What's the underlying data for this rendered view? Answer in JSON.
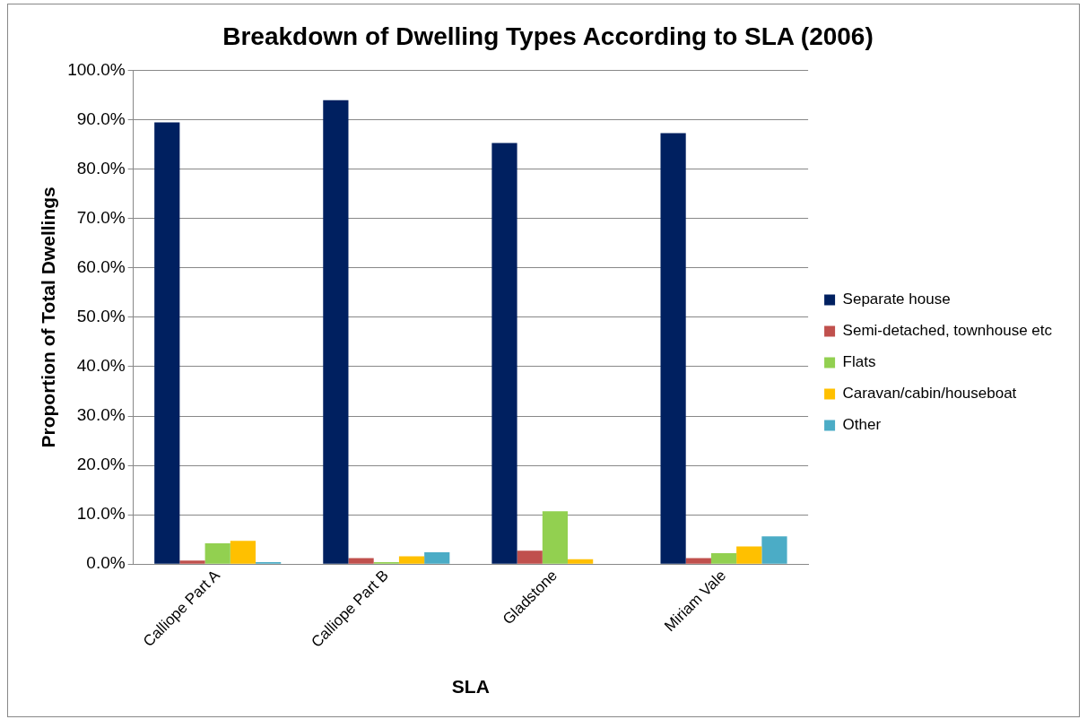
{
  "chart_data": {
    "type": "bar",
    "title": "Breakdown of Dwelling Types According to SLA (2006)",
    "xlabel": "SLA",
    "ylabel": "Proportion of Total Dwellings",
    "categories": [
      "Calliope Part A",
      "Calliope Part B",
      "Gladstone",
      "Miriam Vale"
    ],
    "series": [
      {
        "name": "Separate house",
        "color": "#002060",
        "values": [
          89.5,
          94.0,
          85.3,
          87.3
        ]
      },
      {
        "name": "Semi-detached, townhouse etc",
        "color": "#c0504d",
        "values": [
          0.7,
          1.2,
          2.7,
          1.2
        ]
      },
      {
        "name": "Flats",
        "color": "#92d050",
        "values": [
          4.2,
          0.4,
          10.7,
          2.2
        ]
      },
      {
        "name": "Caravan/cabin/houseboat",
        "color": "#ffc000",
        "values": [
          4.7,
          1.6,
          1.0,
          3.6
        ]
      },
      {
        "name": "Other",
        "color": "#4bacc6",
        "values": [
          0.4,
          2.4,
          0,
          5.6
        ]
      }
    ],
    "ylim": [
      0,
      100
    ],
    "yticks": [
      {
        "value": 0,
        "label": "0.0%"
      },
      {
        "value": 10,
        "label": "10.0%"
      },
      {
        "value": 20,
        "label": "20.0%"
      },
      {
        "value": 30,
        "label": "30.0%"
      },
      {
        "value": 40,
        "label": "40.0%"
      },
      {
        "value": 50,
        "label": "50.0%"
      },
      {
        "value": 60,
        "label": "60.0%"
      },
      {
        "value": 70,
        "label": "70.0%"
      },
      {
        "value": 80,
        "label": "80.0%"
      },
      {
        "value": 90,
        "label": "90.0%"
      },
      {
        "value": 100,
        "label": "100.0%"
      }
    ],
    "grid": "y",
    "legend": "right"
  }
}
